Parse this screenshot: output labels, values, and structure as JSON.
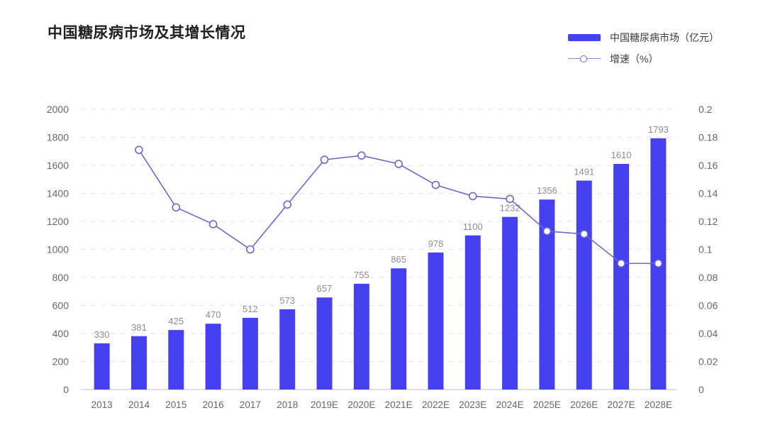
{
  "header": {
    "title": "中国糖尿病市场及其增长情况"
  },
  "legend": {
    "position": "top-right",
    "items": [
      {
        "label": "中国糖尿病市场（亿元）",
        "marker": "bar-swatch",
        "color": "#4641f0"
      },
      {
        "label": "增速（%）",
        "marker": "line-open-circle-swatch",
        "color": "#6b68c8"
      }
    ]
  },
  "chart_data": {
    "type": "bar",
    "combo": "bar+line dual-axis",
    "title": "中国糖尿病市场及其增长情况",
    "categories": [
      "2013",
      "2014",
      "2015",
      "2016",
      "2017",
      "2018",
      "2019E",
      "2020E",
      "2021E",
      "2022E",
      "2023E",
      "2024E",
      "2025E",
      "2026E",
      "2027E",
      "2028E"
    ],
    "series": [
      {
        "name": "中国糖尿病市场（亿元）",
        "type": "bar",
        "axis": "left",
        "color": "#4641f0",
        "values": [
          330,
          381,
          425,
          470,
          512,
          573,
          657,
          755,
          865,
          978,
          1100,
          1232,
          1356,
          1491,
          1610,
          1793
        ]
      },
      {
        "name": "增速（%）",
        "type": "line",
        "axis": "right",
        "color": "#6b68c8",
        "marker": "open-circle",
        "values": [
          null,
          0.171,
          0.13,
          0.118,
          0.1,
          0.132,
          0.164,
          0.167,
          0.161,
          0.146,
          0.138,
          0.136,
          0.113,
          0.111,
          0.09,
          0.09
        ]
      }
    ],
    "left_axis": {
      "min": 0,
      "max": 2000,
      "step": 200,
      "ticks": [
        "0",
        "200",
        "400",
        "600",
        "800",
        "1000",
        "1200",
        "1400",
        "1600",
        "1800",
        "2000"
      ]
    },
    "right_axis": {
      "min": 0,
      "max": 0.2,
      "step": 0.02,
      "ticks": [
        "0",
        "0.02",
        "0.04",
        "0.06",
        "0.08",
        "0.1",
        "0.12",
        "0.14",
        "0.16",
        "0.18",
        "0.2"
      ]
    },
    "grid": {
      "horizontal_lines": true,
      "style": "dashed",
      "color": "#e6e6ea",
      "baseline_color": "#cfcfd3"
    },
    "bar_value_labels_visible": true,
    "text_colors": {
      "axis_ticks": "#666666",
      "bar_value_labels": "#8c8c8c",
      "x_labels": "#666666"
    }
  }
}
